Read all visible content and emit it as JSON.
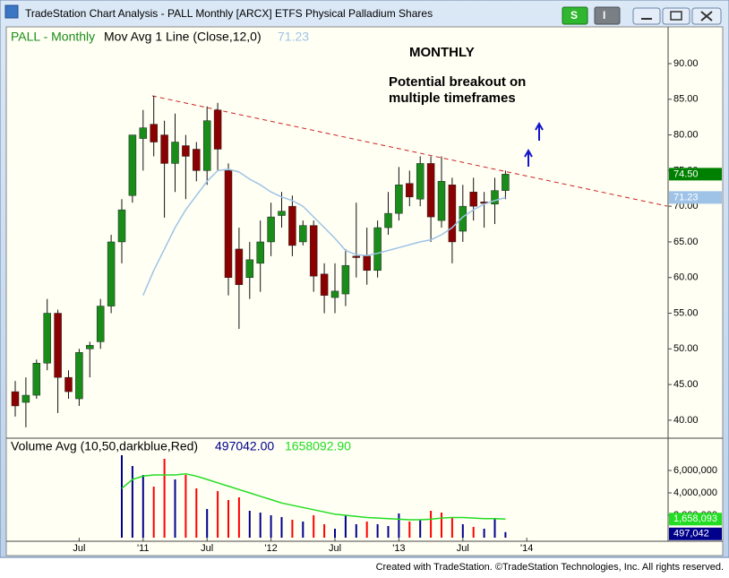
{
  "window": {
    "title": "TradeStation Chart Analysis - PALL Monthly [ARCX] ETFS Physical Palladium Shares",
    "buttons": [
      "S",
      "I"
    ]
  },
  "chart_data": [
    {
      "type": "candlestick",
      "title": "PALL - Monthly",
      "indicator": "Mov Avg 1 Line (Close,12,0)",
      "annotations": [
        "MONTHLY",
        "Potential breakout on",
        "multiple timeframes"
      ],
      "up_color": "#1a8c1a",
      "down_color": "#8b0000",
      "open": [
        44,
        42.5,
        43.5,
        48,
        55,
        46,
        43,
        50,
        51,
        56,
        65,
        71.5,
        79.5,
        81.5,
        80,
        76,
        78.5,
        78,
        75,
        83.5,
        75,
        64,
        60,
        62,
        65,
        68.7,
        70,
        65,
        67.3,
        60.5,
        57.2,
        57.7,
        63,
        63,
        61,
        67,
        69,
        73.2,
        71,
        76,
        68,
        73,
        66.5,
        72,
        70.6,
        70.3,
        72.2,
        null,
        null
      ],
      "high": [
        45.5,
        46,
        48.5,
        57,
        55.5,
        47,
        50,
        51,
        57,
        66,
        71,
        80,
        83.5,
        85.5,
        82,
        83,
        80,
        79,
        84,
        84.5,
        76,
        67,
        65,
        68,
        70.5,
        72,
        71.5,
        68,
        68,
        62,
        62,
        64,
        70.5,
        67,
        68,
        72,
        75.5,
        75,
        77,
        77,
        77,
        74,
        73,
        74,
        72,
        74,
        75,
        null,
        null
      ],
      "low": [
        40.5,
        39,
        43,
        47,
        41,
        43,
        42,
        46,
        50,
        55,
        62,
        70.5,
        75,
        77,
        68.4,
        72,
        71,
        73.5,
        73,
        75,
        57.5,
        52.8,
        57,
        58,
        63,
        67,
        63,
        64.5,
        58,
        55,
        55,
        56,
        60,
        59,
        60,
        66,
        68,
        70,
        70,
        65,
        67,
        62,
        65,
        68,
        67,
        67.5,
        71,
        null,
        null
      ],
      "close": [
        42,
        43.5,
        48,
        55,
        46,
        44,
        49.5,
        50.5,
        56,
        65,
        69.5,
        80,
        81,
        79,
        76,
        79,
        77,
        75,
        82,
        78,
        60,
        59,
        62.5,
        65,
        68.5,
        69.3,
        64.5,
        67.3,
        60.2,
        57.5,
        58.1,
        61.7,
        62.8,
        61,
        67,
        69,
        73,
        71.3,
        76,
        68.5,
        73.5,
        65,
        70,
        70,
        70.4,
        72.2,
        74.5,
        null,
        null
      ],
      "ma": {
        "color": "#9ec3e6",
        "values": [
          null,
          null,
          null,
          null,
          null,
          null,
          null,
          null,
          null,
          null,
          null,
          null,
          57.5,
          61,
          64,
          67,
          69.5,
          71.5,
          73.5,
          75,
          75.2,
          74.8,
          73.8,
          73,
          72,
          71.3,
          70.8,
          70,
          68.5,
          67,
          65.5,
          63.8,
          63.2,
          63.1,
          63.4,
          63.8,
          64.2,
          64.6,
          65,
          65.3,
          66,
          67,
          68.5,
          69.5,
          70.3,
          70.8,
          71.23,
          null,
          null
        ]
      },
      "last_price": {
        "value": 74.5,
        "label": "74.50",
        "color": "#008000"
      },
      "ylim": [
        37.6,
        94.9
      ],
      "yticks": [
        {
          "value": 40,
          "label": "40.00"
        },
        {
          "value": 45,
          "label": "45.00"
        },
        {
          "value": 50,
          "label": "50.00"
        },
        {
          "value": 55,
          "label": "55.00"
        },
        {
          "value": 60,
          "label": "60.00"
        },
        {
          "value": 65,
          "label": "65.00"
        },
        {
          "value": 70,
          "label": "70.00"
        },
        {
          "value": 75,
          "label": "75.00"
        },
        {
          "value": 80,
          "label": "80.00"
        },
        {
          "value": 85,
          "label": "85.00"
        },
        {
          "value": 90,
          "label": "90.00"
        }
      ],
      "grid": false
    },
    {
      "type": "volume",
      "title": "Volume Avg (10,50,darkblue,Red)",
      "categories": [
        null,
        null,
        null,
        null,
        null,
        null,
        "Jul",
        null,
        null,
        null,
        null,
        null,
        "'11",
        null,
        null,
        null,
        null,
        null,
        "Jul",
        null,
        null,
        null,
        null,
        null,
        "'12",
        null,
        null,
        null,
        null,
        null,
        "Jul",
        null,
        null,
        null,
        null,
        null,
        "'13",
        null,
        null,
        null,
        null,
        null,
        "Jul",
        null,
        null,
        null,
        null,
        null,
        "'14"
      ],
      "series": [
        {
          "values": [
            null,
            null,
            null,
            null,
            null,
            null,
            null,
            null,
            null,
            null,
            7360000,
            6400000,
            5600000,
            4560000,
            7040000,
            5200000,
            5600000,
            4400000,
            2560000,
            4160000,
            3360000,
            3600000,
            2400000,
            2240000,
            2000000,
            1840000,
            1600000,
            1440000,
            2000000,
            1200000,
            800000,
            2000000,
            1200000,
            1440000,
            1200000,
            1040000,
            2160000,
            1440000,
            1600000,
            2400000,
            2240000,
            1760000,
            1200000,
            960000,
            800000,
            1760000,
            497042,
            null,
            null
          ],
          "colors": [
            null,
            null,
            null,
            null,
            null,
            null,
            null,
            null,
            null,
            null,
            "#00008b",
            "#00008b",
            "#00008b",
            "#ff0000",
            "#ff0000",
            "#00008b",
            "#ff0000",
            "#ff0000",
            "#00008b",
            "#ff0000",
            "#ff0000",
            "#ff0000",
            "#00008b",
            "#00008b",
            "#00008b",
            "#00008b",
            "#ff0000",
            "#00008b",
            "#ff0000",
            "#ff0000",
            "#00008b",
            "#00008b",
            "#00008b",
            "#ff0000",
            "#00008b",
            "#00008b",
            "#00008b",
            "#ff0000",
            "#00008b",
            "#ff0000",
            "#ff0000",
            "#ff0000",
            "#00008b",
            "#ff0000",
            "#00008b",
            "#00008b",
            "#00008b",
            null,
            null
          ]
        },
        {
          "color": "#22dd22",
          "values": [
            null,
            null,
            null,
            null,
            null,
            null,
            null,
            null,
            null,
            null,
            4400000,
            5200000,
            5500000,
            5600000,
            5600000,
            5600000,
            5700000,
            5500000,
            5200000,
            4900000,
            4600000,
            4300000,
            4000000,
            3700000,
            3400000,
            3100000,
            2900000,
            2700000,
            2500000,
            2300000,
            2100000,
            2000000,
            1900000,
            1800000,
            1750000,
            1700000,
            1650000,
            1600000,
            1600000,
            1650000,
            1750000,
            1800000,
            1800000,
            1750000,
            1700000,
            1700000,
            1658092.9,
            null,
            null
          ]
        }
      ],
      "readouts": [
        {
          "value": 497042,
          "label": "497042.00",
          "color": "#00008b"
        },
        {
          "value": 1658092.9,
          "label": "1658092.90",
          "color": "#22dd22"
        },
        {
          "value": 1658092.9,
          "label": "1,658,093",
          "color": "#22dd22"
        },
        {
          "value": 497042,
          "label": "497,042",
          "color": "#00008b"
        }
      ],
      "ylim": [
        -320000,
        8800000
      ],
      "yticks": [
        {
          "value": 2000000,
          "label": "2,000,000"
        },
        {
          "value": 4000000,
          "label": "4,000,000"
        },
        {
          "value": 6000000,
          "label": "6,000,000"
        }
      ]
    }
  ],
  "footer": "Created with TradeStation. ©TradeStation Technologies, Inc. All rights reserved."
}
